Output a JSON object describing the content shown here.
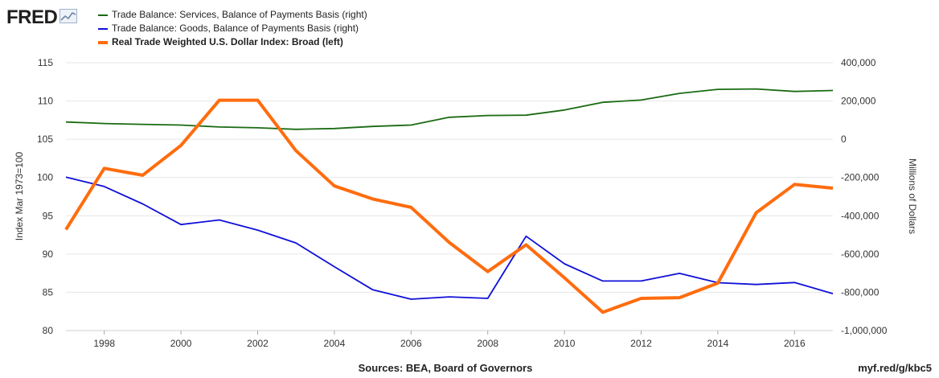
{
  "header": {
    "logo_text": "FRED",
    "logo_icon": "trend-line-icon"
  },
  "chart_data": {
    "type": "line",
    "x": [
      1997,
      1998,
      1999,
      2000,
      2001,
      2002,
      2003,
      2004,
      2005,
      2006,
      2007,
      2008,
      2009,
      2010,
      2011,
      2012,
      2013,
      2014,
      2015,
      2016,
      2017
    ],
    "x_ticks": [
      "1998",
      "2000",
      "2002",
      "2004",
      "2006",
      "2008",
      "2010",
      "2012",
      "2014",
      "2016"
    ],
    "xlim": [
      1997,
      2017
    ],
    "left_axis": {
      "label": "Index Mar 1973=100",
      "ylim": [
        80,
        115
      ],
      "ticks": [
        "80",
        "85",
        "90",
        "95",
        "100",
        "105",
        "110",
        "115"
      ]
    },
    "right_axis": {
      "label": "Millions of Dollars",
      "ylim": [
        -1000000,
        400000
      ],
      "ticks": [
        "-1,000,000",
        "-800,000",
        "-600,000",
        "-400,000",
        "-200,000",
        "0",
        "200,000",
        "400,000"
      ]
    },
    "grid": true,
    "legend_position": "top-left",
    "series": [
      {
        "name": "Trade Balance: Services, Balance of Payments Basis (right)",
        "axis": "right",
        "color": "#1a6b12",
        "values": [
          90000,
          82000,
          78000,
          74000,
          64000,
          60000,
          52000,
          56000,
          67000,
          74000,
          115000,
          124000,
          126000,
          153000,
          193000,
          205000,
          240000,
          261000,
          263000,
          250000,
          255000
        ]
      },
      {
        "name": "Trade Balance: Goods, Balance of Payments Basis (right)",
        "axis": "right",
        "color": "#1010d8",
        "values": [
          -198000,
          -247000,
          -338000,
          -446000,
          -422000,
          -475000,
          -542000,
          -666000,
          -787000,
          -836000,
          -824000,
          -832000,
          -507000,
          -651000,
          -741000,
          -741000,
          -701000,
          -750000,
          -759000,
          -749000,
          -807000
        ]
      },
      {
        "name": "Real Trade Weighted U.S. Dollar Index: Broad (left)",
        "axis": "left",
        "color": "#ff6c0e",
        "values": [
          93.2,
          101.2,
          100.3,
          104.2,
          110.1,
          110.1,
          103.5,
          98.9,
          97.2,
          96.1,
          91.5,
          87.7,
          91.2,
          86.9,
          82.4,
          84.2,
          84.3,
          86.2,
          95.4,
          99.1,
          98.6
        ]
      }
    ]
  },
  "footer": {
    "sources": "Sources: BEA, Board of Governors",
    "shortlink": "myf.red/g/kbc5"
  }
}
